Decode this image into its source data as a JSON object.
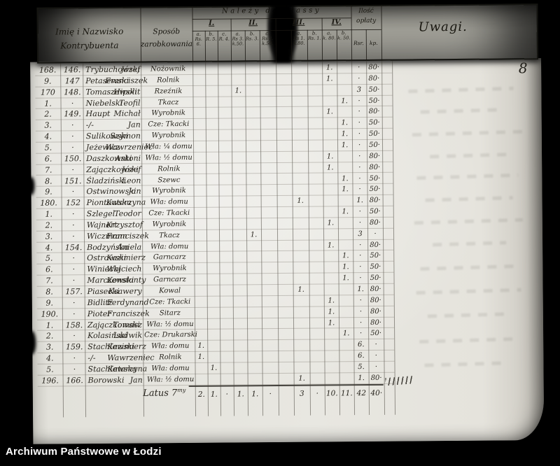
{
  "caption": "Archiwum Państwowe w Łodzi",
  "page_number": "8",
  "header": {
    "name_label_line1": "Imię i Nazwisko",
    "name_label_line2": "Kontrybuenta",
    "occupation_label_line1": "Sposób",
    "occupation_label_line2": "zarobkowania",
    "classes_title": "Należy do Klassy",
    "fee_label_line1": "Ilość",
    "fee_label_line2": "opłaty",
    "fee_sub_rsr": "Rsr.",
    "fee_sub_kp": "kp.",
    "remarks_label": "Uwagi.",
    "class_groups": [
      {
        "id": "I",
        "numeral": "I.",
        "subs": [
          {
            "key": "ia",
            "letter": "a.",
            "rate": "Rs. 6."
          },
          {
            "key": "ib",
            "letter": "b.",
            "rate": "R. 5."
          },
          {
            "key": "ic",
            "letter": "c.",
            "rate": "R. 4."
          }
        ]
      },
      {
        "id": "II",
        "numeral": "II.",
        "subs": [
          {
            "key": "iia",
            "letter": "a.",
            "rate": "Rs 3. k.50."
          },
          {
            "key": "iib",
            "letter": "b.",
            "rate": "Rs. 3."
          },
          {
            "key": "iic",
            "letter": "c.",
            "rate": "Rs 2. k.50."
          }
        ]
      },
      {
        "id": "III",
        "numeral": "III.",
        "subs": [
          {
            "key": "iiia",
            "letter": "a.",
            "rate": "Rs 1. k.80."
          },
          {
            "key": "iiib",
            "letter": "b.",
            "rate": "Rs. 1."
          }
        ]
      },
      {
        "id": "IV",
        "numeral": "IV.",
        "subs": [
          {
            "key": "iva",
            "letter": "a.",
            "rate": "k. 80."
          },
          {
            "key": "ivb",
            "letter": "b.",
            "rate": "k. 50."
          }
        ]
      }
    ]
  },
  "table": {
    "tick_mark": "1.",
    "rows": [
      {
        "a": "168.",
        "b": "146.",
        "sn": "Trybuchowski",
        "gn": "Józef",
        "oc": "Nożownik",
        "cls": "iva",
        "rsr": "·",
        "kp": "80·"
      },
      {
        "a": "9.",
        "b": "147",
        "sn": "Petasewski",
        "gn": "Franciszek",
        "oc": "Rolnik",
        "cls": "iva",
        "rsr": "·",
        "kp": "80·"
      },
      {
        "a": "170",
        "b": "148.",
        "sn": "Tomaszewski",
        "gn": "Hipolit",
        "oc": "Rzeźnik",
        "cls": "iia",
        "rsr": "3",
        "kp": "50·"
      },
      {
        "a": "1.",
        "b": "·",
        "sn": "Niebelski",
        "gn": "Teofil",
        "oc": "Tkacz",
        "cls": "ivb",
        "rsr": "·",
        "kp": "50·"
      },
      {
        "a": "2.",
        "b": "149.",
        "sn": "Haupt",
        "gn": "Michał",
        "oc": "Wyrobnik",
        "cls": "iva",
        "rsr": "·",
        "kp": "80·"
      },
      {
        "a": "3.",
        "b": "·",
        "sn": "-/-",
        "gn": "Jan",
        "oc": "Cze: Tkacki",
        "cls": "ivb",
        "rsr": "·",
        "kp": "50·"
      },
      {
        "a": "4.",
        "b": "·",
        "sn": "Sulikowski",
        "gn": "Szymon",
        "oc": "Wyrobnik",
        "cls": "ivb",
        "rsr": "·",
        "kp": "50·"
      },
      {
        "a": "5.",
        "b": "·",
        "sn": "Jeżewicz",
        "gn": "Wawrzeniec",
        "oc": "Wła: ¼ domu",
        "cls": "ivb",
        "rsr": "·",
        "kp": "50·"
      },
      {
        "a": "6.",
        "b": "150.",
        "sn": "Daszkowski",
        "gn": "Antoni",
        "oc": "Wła: ½ domu",
        "cls": "iva",
        "rsr": "·",
        "kp": "80·"
      },
      {
        "a": "7.",
        "b": "·",
        "sn": "Zajączkowski",
        "gn": "Józef",
        "oc": "Rolnik",
        "cls": "iva",
        "rsr": "·",
        "kp": "80·"
      },
      {
        "a": "8.",
        "b": "151.",
        "sn": "Śladziński",
        "gn": "Leon",
        "oc": "Szewc",
        "cls": "ivb",
        "rsr": "·",
        "kp": "50·"
      },
      {
        "a": "9.",
        "b": "·",
        "sn": "Ostwinowski",
        "gn": "Jan",
        "oc": "Wyrobnik",
        "cls": "ivb",
        "rsr": "·",
        "kp": "50·"
      },
      {
        "a": "180.",
        "b": "152",
        "sn": "Piontowska",
        "gn": "Katarzyna",
        "oc": "Wła: domu",
        "cls": "iiia",
        "rsr": "1.",
        "kp": "80·"
      },
      {
        "a": "1.",
        "b": "·",
        "sn": "Szlegel",
        "gn": "Teodor",
        "oc": "Cze: Tkacki",
        "cls": "ivb",
        "rsr": "·",
        "kp": "50·"
      },
      {
        "a": "2.",
        "b": "·",
        "sn": "Wajnert",
        "gn": "Krzysztof",
        "oc": "Wyrobnik",
        "cls": "iva",
        "rsr": "·",
        "kp": "80·"
      },
      {
        "a": "3.",
        "b": "·",
        "sn": "Wiczmann",
        "gn": "Franciszek",
        "oc": "Tkacz",
        "cls": "iib",
        "rsr": "3",
        "kp": "·"
      },
      {
        "a": "4.",
        "b": "154.",
        "sn": "Bodzyńska",
        "gn": "Aniela",
        "oc": "Wła: domu",
        "cls": "iva",
        "rsr": "·",
        "kp": "80·"
      },
      {
        "a": "5.",
        "b": "·",
        "sn": "Ostrowski",
        "gn": "Kazimierz",
        "oc": "Garncarz",
        "cls": "ivb",
        "rsr": "·",
        "kp": "50·"
      },
      {
        "a": "6.",
        "b": "·",
        "sn": "Winiecki",
        "gn": "Wojciech",
        "oc": "Wyrobnik",
        "cls": "ivb",
        "rsr": "·",
        "kp": "50·"
      },
      {
        "a": "7.",
        "b": "·",
        "sn": "Marczewski",
        "gn": "Konstanty",
        "oc": "Garncarz",
        "cls": "ivb",
        "rsr": "·",
        "kp": "50·"
      },
      {
        "a": "8.",
        "b": "157.",
        "sn": "Piasecki",
        "gn": "Ksawery",
        "oc": "Kowal",
        "cls": "iiia",
        "rsr": "1.",
        "kp": "80·"
      },
      {
        "a": "9.",
        "b": "·",
        "sn": "Bidlitz",
        "gn": "Ferdynand",
        "oc": "Cze: Tkacki",
        "cls": "iva",
        "rsr": "·",
        "kp": "80·"
      },
      {
        "a": "190.",
        "b": "·",
        "sn": "Pioter",
        "gn": "Franciszek",
        "oc": "Sitarz",
        "cls": "iva",
        "rsr": "·",
        "kp": "80·"
      },
      {
        "a": "1.",
        "b": "158.",
        "sn": "Zajączkowski",
        "gn": "Tomasz",
        "oc": "Wła: ½ domu",
        "cls": "iva",
        "rsr": "·",
        "kp": "80·"
      },
      {
        "a": "2.",
        "b": "·",
        "sn": "Kolasiński",
        "gn": "Ludwik",
        "oc": "Cze: Drukarski",
        "cls": "ivb",
        "rsr": "·",
        "kp": "50·"
      },
      {
        "a": "3.",
        "b": "159.",
        "sn": "Stachlewski",
        "gn": "Kazimierz",
        "oc": "Wła: domu",
        "cls": "ia",
        "rsr": "6.",
        "kp": "·"
      },
      {
        "a": "4.",
        "b": "·",
        "sn": "-/-",
        "gn": "Wawrzeniec",
        "oc": "Rolnik",
        "cls": "ia",
        "rsr": "6.",
        "kp": "·"
      },
      {
        "a": "5.",
        "b": "·",
        "sn": "Stachlewska",
        "gn": "Katarzyna",
        "oc": "Wła: domu",
        "cls": "ib",
        "rsr": "5.",
        "kp": "·"
      },
      {
        "a": "196.",
        "b": "166.",
        "sn": "Borowski",
        "gn": "Jan",
        "oc": "Wła: ½ domu",
        "cls": "iiia",
        "rsr": "1.",
        "kp": "80·"
      }
    ],
    "summary": {
      "label": "Latus 7",
      "label_sup": "my",
      "vals": {
        "ia": "2.",
        "ib": "1.",
        "ic": "·",
        "iia": "1.",
        "iib": "1.",
        "iic": "·",
        "iiia": "3",
        "iiib": "·",
        "iva": "10.",
        "ivb": "11.",
        "rsr": "42",
        "kp": "40·"
      }
    }
  }
}
